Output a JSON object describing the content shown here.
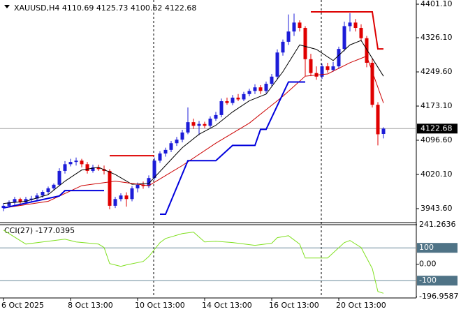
{
  "chart_data": {
    "type": "candlestick",
    "title": "XAUUSD,H4",
    "candles": [
      [
        3945,
        3956,
        3938,
        3950
      ],
      [
        3950,
        3962,
        3946,
        3958
      ],
      [
        3958,
        3970,
        3952,
        3965
      ],
      [
        3965,
        3968,
        3952,
        3958
      ],
      [
        3958,
        3970,
        3954,
        3965
      ],
      [
        3963,
        3972,
        3958,
        3966
      ],
      [
        3966,
        3978,
        3962,
        3973
      ],
      [
        3973,
        3985,
        3968,
        3981
      ],
      [
        3981,
        3993,
        3976,
        3989
      ],
      [
        3989,
        4000,
        3984,
        3997
      ],
      [
        3997,
        4034,
        3994,
        4028
      ],
      [
        4028,
        4050,
        4022,
        4043
      ],
      [
        4043,
        4055,
        4038,
        4048
      ],
      [
        4048,
        4058,
        4040,
        4051
      ],
      [
        4051,
        4055,
        4036,
        4043
      ],
      [
        4043,
        4048,
        4022,
        4028
      ],
      [
        4028,
        4042,
        4024,
        4036
      ],
      [
        4036,
        4042,
        4028,
        4032
      ],
      [
        4032,
        4040,
        4020,
        4028
      ],
      [
        4028,
        4032,
        3942,
        3950
      ],
      [
        3950,
        3970,
        3945,
        3965
      ],
      [
        3965,
        3978,
        3960,
        3973
      ],
      [
        3973,
        3980,
        3948,
        3965
      ],
      [
        3965,
        3994,
        3960,
        3989
      ],
      [
        3989,
        4002,
        3980,
        3997
      ],
      [
        3997,
        4004,
        3988,
        3994
      ],
      [
        3994,
        4018,
        3990,
        4012
      ],
      [
        4012,
        4058,
        4008,
        4051
      ],
      [
        4051,
        4072,
        4046,
        4067
      ],
      [
        4067,
        4080,
        4060,
        4075
      ],
      [
        4075,
        4095,
        4070,
        4090
      ],
      [
        4090,
        4104,
        4084,
        4098
      ],
      [
        4098,
        4120,
        4092,
        4114
      ],
      [
        4114,
        4170,
        4110,
        4137
      ],
      [
        4137,
        4145,
        4122,
        4129
      ],
      [
        4129,
        4140,
        4108,
        4133
      ],
      [
        4133,
        4138,
        4124,
        4129
      ],
      [
        4129,
        4150,
        4125,
        4145
      ],
      [
        4145,
        4160,
        4140,
        4153
      ],
      [
        4153,
        4190,
        4148,
        4184
      ],
      [
        4184,
        4192,
        4176,
        4180
      ],
      [
        4180,
        4198,
        4175,
        4192
      ],
      [
        4192,
        4200,
        4184,
        4188
      ],
      [
        4188,
        4205,
        4184,
        4200
      ],
      [
        4200,
        4212,
        4195,
        4207
      ],
      [
        4207,
        4222,
        4200,
        4215
      ],
      [
        4215,
        4220,
        4200,
        4207
      ],
      [
        4207,
        4228,
        4202,
        4223
      ],
      [
        4223,
        4245,
        4218,
        4239
      ],
      [
        4239,
        4300,
        4232,
        4293
      ],
      [
        4293,
        4322,
        4286,
        4317
      ],
      [
        4317,
        4378,
        4310,
        4340
      ],
      [
        4340,
        4380,
        4330,
        4360
      ],
      [
        4360,
        4365,
        4340,
        4348
      ],
      [
        4348,
        4352,
        4240,
        4278
      ],
      [
        4278,
        4290,
        4240,
        4247
      ],
      [
        4247,
        4262,
        4232,
        4239
      ],
      [
        4239,
        4268,
        4234,
        4262
      ],
      [
        4262,
        4270,
        4248,
        4254
      ],
      [
        4254,
        4272,
        4250,
        4262
      ],
      [
        4262,
        4306,
        4256,
        4301
      ],
      [
        4301,
        4362,
        4296,
        4352
      ],
      [
        4352,
        4381,
        4340,
        4360
      ],
      [
        4360,
        4368,
        4340,
        4348
      ],
      [
        4348,
        4356,
        4318,
        4325
      ],
      [
        4325,
        4330,
        4260,
        4270
      ],
      [
        4270,
        4280,
        4170,
        4176
      ],
      [
        4176,
        4182,
        4085,
        4110
      ],
      [
        4110.69,
        4125.73,
        4100.62,
        4122.68
      ]
    ],
    "colors": {
      "up": "#1c1cd8",
      "down": "#e00000"
    },
    "ylim": [
      3913.9,
      4410.5
    ],
    "yticks": [
      {
        "value": 4401.1,
        "label": "4401.10"
      },
      {
        "value": 4326.1,
        "label": "4326.10"
      },
      {
        "value": 4249.6,
        "label": "4249.60"
      },
      {
        "value": 4173.1,
        "label": "4173.10"
      },
      {
        "value": 4096.6,
        "label": "4096.60"
      },
      {
        "value": 4020.1,
        "label": "4020.10"
      },
      {
        "value": 3943.6,
        "label": "3943.60"
      }
    ],
    "xticks": [
      {
        "value": 0,
        "label": "6 Oct 2025"
      },
      {
        "value": 12,
        "label": "8 Oct 13:00"
      },
      {
        "value": 24,
        "label": "10 Oct 13:00"
      },
      {
        "value": 36,
        "label": "14 Oct 13:00"
      },
      {
        "value": 48,
        "label": "16 Oct 13:00"
      },
      {
        "value": 60,
        "label": "20 Oct 13:00"
      }
    ],
    "lines": [
      {
        "color": "#000000",
        "x": [
          0,
          4,
          8,
          11,
          14,
          17,
          20,
          23,
          26,
          29,
          32,
          35,
          38,
          41,
          44,
          47,
          50,
          53,
          56,
          59,
          62,
          64,
          66,
          68
        ],
        "values": [
          3955,
          3960,
          3975,
          4005,
          4030,
          4036,
          4020,
          3998,
          4000,
          4040,
          4080,
          4110,
          4130,
          4160,
          4185,
          4200,
          4250,
          4310,
          4300,
          4275,
          4310,
          4320,
          4280,
          4240
        ]
      },
      {
        "color": "#cc0000",
        "x": [
          0,
          8,
          14,
          20,
          26,
          32,
          38,
          44,
          50,
          54,
          58,
          62,
          65,
          68
        ],
        "values": [
          3945,
          3960,
          3995,
          4005,
          3995,
          4040,
          4090,
          4135,
          4195,
          4240,
          4245,
          4270,
          4285,
          4180
        ]
      },
      {
        "color": "#0000dd",
        "x": [
          0,
          10,
          11,
          18,
          19,
          28,
          29,
          33,
          38,
          41,
          45,
          46,
          47,
          51,
          54
        ],
        "values": [
          3945,
          3972,
          3984,
          3984,
          null,
          3931,
          3931,
          4051,
          4051,
          4085,
          4085,
          4121,
          4121,
          4227,
          4227
        ]
      },
      {
        "color": "#dd0000",
        "x": [
          19,
          27,
          28,
          55,
          66,
          67,
          68
        ],
        "values": [
          4062,
          4062,
          null,
          4384,
          4384,
          4301,
          4301
        ]
      }
    ],
    "cci": {
      "name": "CCI(27)",
      "color": "#80e020",
      "x": [
        0,
        4,
        7,
        11,
        13,
        17,
        18,
        19,
        21,
        22,
        25,
        26,
        28,
        29,
        32,
        34,
        36,
        38,
        41,
        45,
        48,
        49,
        51,
        53,
        54,
        56,
        58,
        61,
        62,
        64,
        66,
        67,
        68
      ],
      "values": [
        208,
        123,
        136,
        153,
        136,
        123,
        102,
        4,
        -13,
        -4,
        17,
        47,
        132,
        157,
        187,
        196,
        136,
        140,
        132,
        115,
        128,
        162,
        174,
        123,
        38,
        38,
        38,
        132,
        145,
        102,
        -26,
        -166,
        -177.0395
      ],
      "ylim": [
        -196.9587,
        241.2636
      ],
      "yticks": [
        241.2636,
        100,
        {
          "value": 0,
          "label": "0.00"
        },
        -100,
        -196.9587
      ]
    }
  }
}
